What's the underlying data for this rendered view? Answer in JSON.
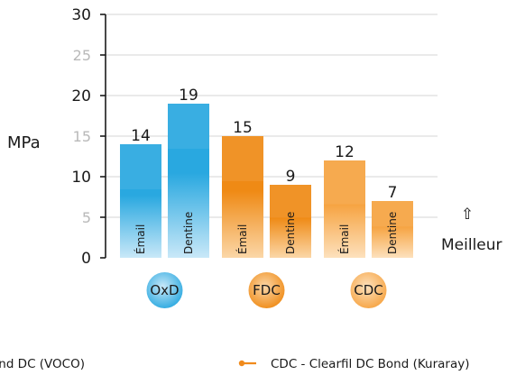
{
  "chart_data": {
    "type": "bar",
    "ylabel": "MPa",
    "ylim": [
      0,
      30
    ],
    "y_ticks": [
      {
        "value": 0,
        "label": "0",
        "emphasis": true
      },
      {
        "value": 5,
        "label": "5",
        "emphasis": false
      },
      {
        "value": 10,
        "label": "10",
        "emphasis": true
      },
      {
        "value": 15,
        "label": "15",
        "emphasis": false
      },
      {
        "value": 20,
        "label": "20",
        "emphasis": true
      },
      {
        "value": 25,
        "label": "25",
        "emphasis": false
      },
      {
        "value": 30,
        "label": "30",
        "emphasis": true
      }
    ],
    "grid": true,
    "groups": [
      {
        "label": "OxD",
        "color": "#29a8e0",
        "light": "#c9e8f8",
        "bars": [
          {
            "category": "Émail",
            "value": 14
          },
          {
            "category": "Dentine",
            "value": 19
          }
        ]
      },
      {
        "label": "FDC",
        "color": "#ef8a15",
        "light": "#fbd7a8",
        "bars": [
          {
            "category": "Émail",
            "value": 15
          },
          {
            "category": "Dentine",
            "value": 9
          }
        ]
      },
      {
        "label": "CDC",
        "color": "#f6a341",
        "light": "#fde1bd",
        "bars": [
          {
            "category": "Émail",
            "value": 12
          },
          {
            "category": "Dentine",
            "value": 7
          }
        ]
      }
    ],
    "annotation": {
      "arrow": "⇧",
      "text": "Meilleur"
    },
    "legend": [
      {
        "text": "ond DC (VOCO)",
        "color": "#29a8e0"
      },
      {
        "text": "CDC  - Clearfil DC Bond (Kuraray)",
        "color": "#f08a1c"
      }
    ]
  }
}
